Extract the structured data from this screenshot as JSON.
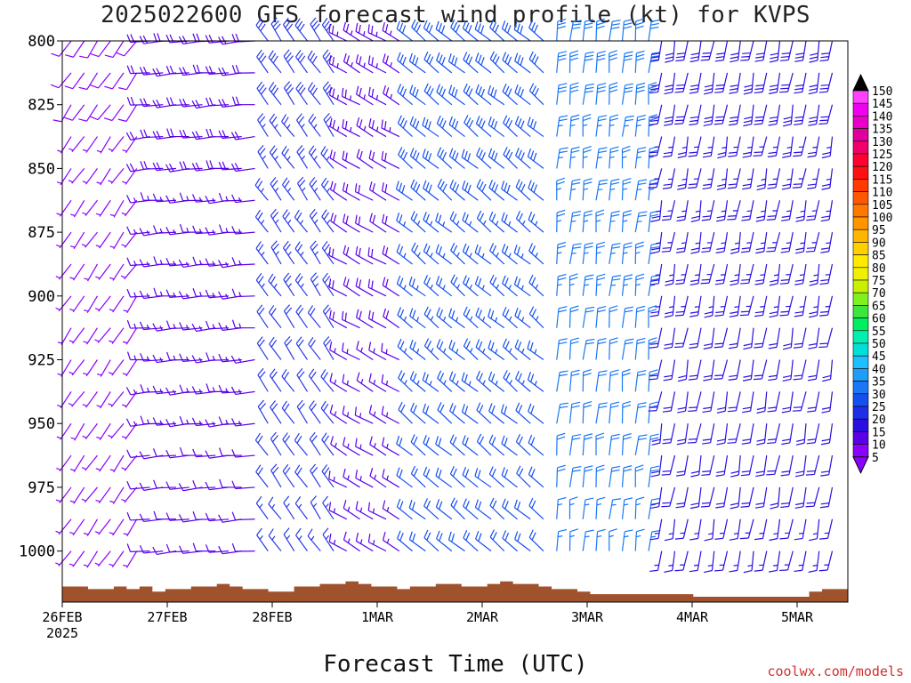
{
  "title": "2025022600 GFS forecast wind profile (kt) for KVPS",
  "x_axis_label": "Forecast Time (UTC)",
  "credit": "coolwx.com/models",
  "chart_data": {
    "type": "wind-barb time-height",
    "title": "2025022600 GFS forecast wind profile (kt) for KVPS",
    "xlabel": "Forecast Time (UTC)",
    "ylabel": "",
    "y_ticks": [
      800,
      825,
      850,
      875,
      900,
      925,
      950,
      975,
      1000
    ],
    "ylim": [
      800,
      1020
    ],
    "y_inverted": true,
    "x_ticks": [
      {
        "label": "26FEB",
        "sublabel": "2025"
      },
      {
        "label": "27FEB",
        "sublabel": ""
      },
      {
        "label": "28FEB",
        "sublabel": ""
      },
      {
        "label": "1MAR",
        "sublabel": ""
      },
      {
        "label": "2MAR",
        "sublabel": ""
      },
      {
        "label": "3MAR",
        "sublabel": ""
      },
      {
        "label": "4MAR",
        "sublabel": ""
      },
      {
        "label": "5MAR",
        "sublabel": ""
      }
    ],
    "x_range_days": [
      0,
      7.5
    ],
    "surface_pressure_hpa": [
      1016,
      1016,
      1017,
      1017,
      1016,
      1017,
      1016,
      1018,
      1017,
      1017,
      1016,
      1016,
      1015,
      1016,
      1017,
      1017,
      1018,
      1018,
      1016,
      1016,
      1015,
      1015,
      1014,
      1015,
      1016,
      1016,
      1017,
      1016,
      1016,
      1015,
      1015,
      1016,
      1016,
      1015,
      1014,
      1015,
      1015,
      1016,
      1017,
      1017,
      1018,
      1019,
      1019,
      1019,
      1019,
      1019,
      1019,
      1019,
      1019,
      1020,
      1020,
      1020,
      1020,
      1020,
      1020,
      1020,
      1020,
      1020,
      1018,
      1017,
      1017
    ],
    "colorbar": {
      "levels": [
        5,
        10,
        15,
        20,
        25,
        30,
        35,
        40,
        45,
        50,
        55,
        60,
        65,
        70,
        75,
        80,
        85,
        90,
        95,
        100,
        105,
        110,
        115,
        120,
        125,
        130,
        135,
        140,
        145,
        150
      ],
      "colors": [
        "#8c00ff",
        "#5a00e8",
        "#2a10e0",
        "#1e2ee8",
        "#1450f0",
        "#1a78f5",
        "#1e9cf7",
        "#1ebeff",
        "#00e0d8",
        "#00f0b4",
        "#00ee60",
        "#3ee63c",
        "#80f020",
        "#c8f000",
        "#f0f000",
        "#ffea00",
        "#ffd000",
        "#ffb400",
        "#ff9600",
        "#ff7800",
        "#ff5800",
        "#ff3a00",
        "#ff1010",
        "#ff0030",
        "#f0006a",
        "#e0009a",
        "#e800c8",
        "#f000f0",
        "#ff40ff",
        "#000000"
      ],
      "under_color": "#8c00ff",
      "over_color": "#000000"
    },
    "wind_regimes": [
      {
        "days": [
          0.0,
          0.7
        ],
        "direction_deg": 215,
        "speed_kt": [
          4,
          8
        ],
        "color": "#8c00ff"
      },
      {
        "days": [
          0.7,
          1.8
        ],
        "direction_deg": 265,
        "speed_kt": [
          10,
          20
        ],
        "color": "#5a00e8"
      },
      {
        "days": [
          1.8,
          2.5
        ],
        "direction_deg": 325,
        "speed_kt": [
          15,
          30
        ],
        "color": "#2a3ae8"
      },
      {
        "days": [
          2.5,
          3.2
        ],
        "direction_deg": 300,
        "speed_kt": [
          12,
          25
        ],
        "color": "#5a00e8"
      },
      {
        "days": [
          3.2,
          4.5
        ],
        "direction_deg": 310,
        "speed_kt": [
          18,
          32
        ],
        "color": "#1450f0"
      },
      {
        "days": [
          4.5,
          5.5
        ],
        "direction_deg": 5,
        "speed_kt": [
          15,
          30
        ],
        "color": "#1a78f5"
      },
      {
        "days": [
          5.5,
          7.5
        ],
        "direction_deg": 190,
        "speed_kt": [
          15,
          30
        ],
        "color": "#2a10e0"
      }
    ]
  }
}
